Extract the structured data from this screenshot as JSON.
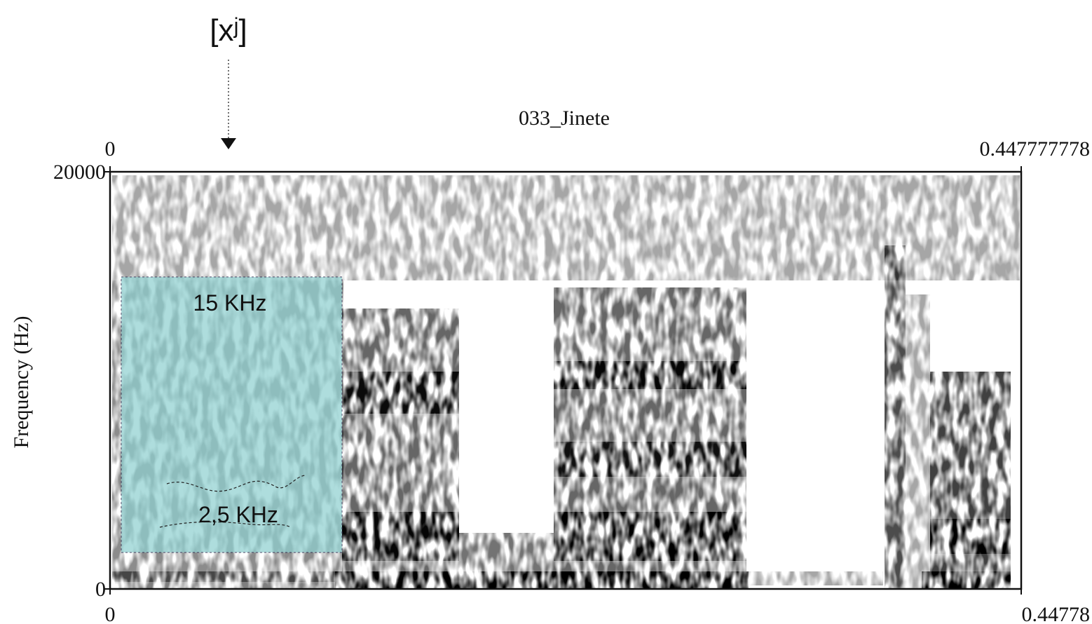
{
  "chart_data": {
    "type": "spectrogram",
    "title": "033_Jinete",
    "ylabel": "Frequency (Hz)",
    "xlim": [
      0,
      0.447777778
    ],
    "ylim": [
      0,
      20000
    ],
    "yticks": [
      0,
      20000
    ],
    "xticks": [
      0,
      {
        "value": 0.447777778,
        "label": "0.44778"
      }
    ],
    "top_xticks": [
      0,
      0.447777778
    ],
    "annotations": [
      "[xʲ]",
      "15 KHz",
      "2,5 KHz"
    ]
  }
}
